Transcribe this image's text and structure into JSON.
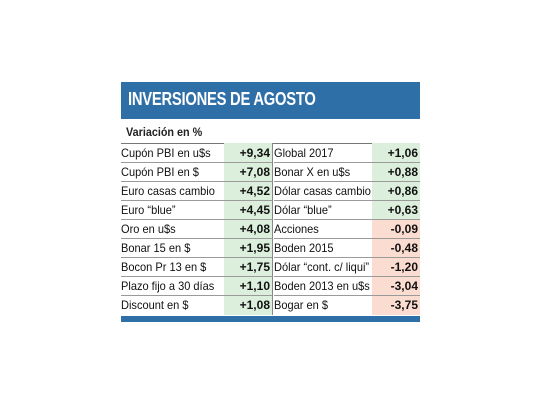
{
  "header": {
    "title": "INVERSIONES DE AGOSTO",
    "subtitle": "Variación en %"
  },
  "colors": {
    "header_blue": "#2f6fa8",
    "positive_bg": "#dcefdc",
    "negative_bg": "#fbdcd0"
  },
  "table": {
    "left": [
      {
        "label": "Cupón PBI en u$s",
        "value": "+9,34"
      },
      {
        "label": "Cupón PBI en $",
        "value": "+7,08"
      },
      {
        "label": "Euro casas cambio",
        "value": "+4,52"
      },
      {
        "label": "Euro “blue”",
        "value": "+4,45"
      },
      {
        "label": "Oro en u$s",
        "value": "+4,08"
      },
      {
        "label": "Bonar 15 en $",
        "value": "+1,95"
      },
      {
        "label": "Bocon Pr 13 en $",
        "value": "+1,75"
      },
      {
        "label": "Plazo fijo a 30 días",
        "value": "+1,10"
      },
      {
        "label": "Discount en $",
        "value": "+1,08"
      }
    ],
    "right": [
      {
        "label": "Global 2017",
        "value": "+1,06"
      },
      {
        "label": "Bonar X en u$s",
        "value": "+0,88"
      },
      {
        "label": "Dólar casas cambio",
        "value": "+0,86"
      },
      {
        "label": "Dólar “blue”",
        "value": "+0,63"
      },
      {
        "label": "Acciones",
        "value": "-0,09"
      },
      {
        "label": "Boden 2015",
        "value": "-0,48"
      },
      {
        "label": "Dólar “cont. c/ liqui”",
        "value": "-1,20"
      },
      {
        "label": "Boden 2013 en u$s",
        "value": "-3,04"
      },
      {
        "label": "Bogar en $",
        "value": "-3,75"
      }
    ]
  }
}
